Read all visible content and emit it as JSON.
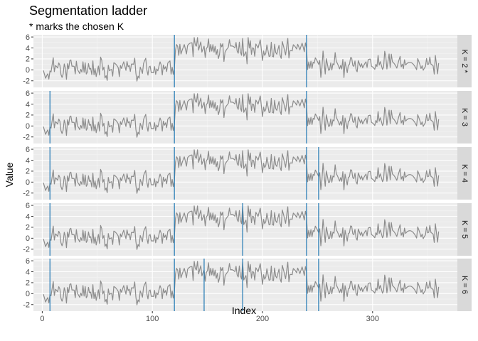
{
  "chart_data": {
    "type": "line",
    "title": "Segmentation ladder",
    "subtitle": "* marks the chosen K",
    "xlabel": "Index",
    "ylabel": "Value",
    "xlim": [
      -8,
      377
    ],
    "ylim": [
      -3.2,
      6.4
    ],
    "x_ticks": [
      0,
      100,
      200,
      300
    ],
    "y_ticks": [
      -2,
      0,
      2,
      4,
      6
    ],
    "grid": true,
    "series_color": "#8c8c8c",
    "changepoint_color": "#1f78b4",
    "n_points": 360,
    "signal_segments": [
      {
        "start": 1,
        "end": 7,
        "mean": -0.5
      },
      {
        "start": 8,
        "end": 120,
        "mean": 0.4
      },
      {
        "start": 121,
        "end": 240,
        "mean": 3.9
      },
      {
        "start": 241,
        "end": 360,
        "mean": 1.0
      }
    ],
    "panels": [
      {
        "label": "K = 2 *",
        "changepoints": [
          120,
          240
        ]
      },
      {
        "label": "K = 3",
        "changepoints": [
          7,
          120,
          240
        ]
      },
      {
        "label": "K = 4",
        "changepoints": [
          7,
          120,
          240,
          251
        ]
      },
      {
        "label": "K = 5",
        "changepoints": [
          7,
          120,
          182,
          240,
          251
        ]
      },
      {
        "label": "K = 6",
        "changepoints": [
          7,
          120,
          147,
          182,
          240,
          251
        ]
      }
    ]
  }
}
